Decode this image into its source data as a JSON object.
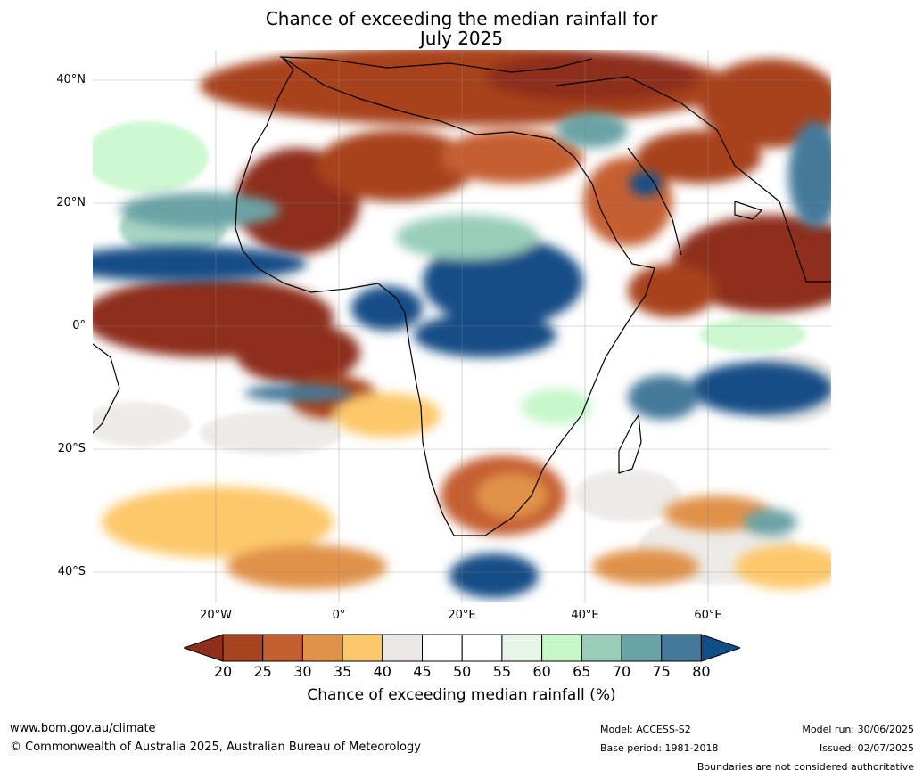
{
  "title_line1": "Chance of exceeding the median rainfall for",
  "title_line2": "July 2025",
  "lat_ticks": [
    "40°N",
    "20°N",
    "0°",
    "20°S",
    "40°S"
  ],
  "lon_ticks": [
    "20°W",
    "0°",
    "20°E",
    "40°E",
    "60°E"
  ],
  "colorbar": {
    "labels": [
      "20",
      "25",
      "30",
      "35",
      "40",
      "45",
      "50",
      "55",
      "60",
      "65",
      "70",
      "75",
      "80"
    ],
    "colors": [
      "#8e2f1c",
      "#a8431f",
      "#c55f30",
      "#e0924a",
      "#fdc86b",
      "#ebe8e5",
      "#ffffff",
      "#ffffff",
      "#e6f5e8",
      "#c5f7c9",
      "#99cdb9",
      "#6aa3a6",
      "#44799a",
      "#124e86"
    ],
    "title": "Chance of exceeding median rainfall (%)"
  },
  "footer": {
    "website": "www.bom.gov.au/climate",
    "copyright": "© Commonwealth of Australia 2025, Australian Bureau of Meteorology",
    "model": "Model: ACCESS-S2",
    "base_period": "Base period: 1981-2018",
    "model_run": "Model run: 30/06/2025",
    "issued": "Issued: 02/07/2025",
    "disclaimer": "Boundaries are not considered authoritative"
  }
}
